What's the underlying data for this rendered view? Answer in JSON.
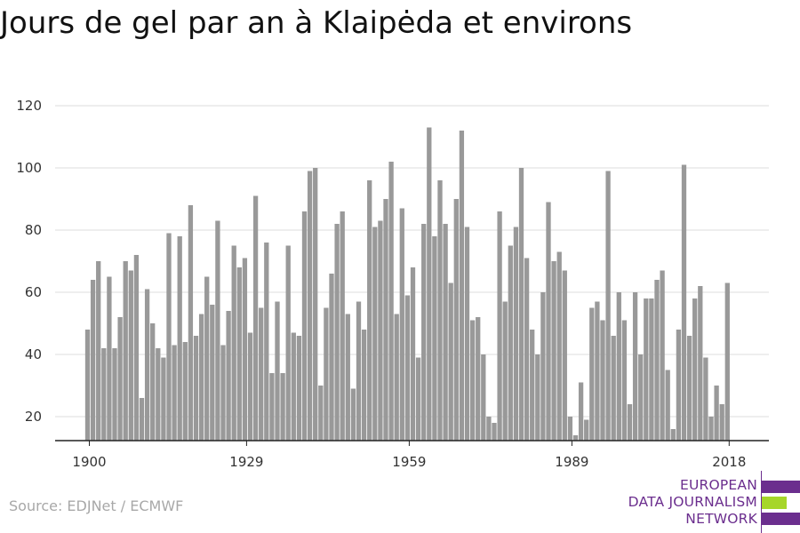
{
  "title": "Jours de gel par an à Klaipėda et environs",
  "source": "Source: EDJNet / ECMWF",
  "logo": {
    "lines": [
      "EUROPEAN",
      "DATA JOURNALISM",
      "NETWORK"
    ]
  },
  "colors": {
    "bar": "#999999",
    "grid": "#dddddd",
    "axis": "#222222",
    "brand_purple": "#6b2e8e",
    "brand_green": "#a6d62a"
  },
  "chart_data": {
    "type": "bar",
    "title": "Jours de gel par an à Klaipėda et environs",
    "xlabel": "",
    "ylabel": "",
    "x_start": 1900,
    "x_tick_labels": [
      "1900",
      "1929",
      "1959",
      "1989",
      "2018"
    ],
    "x_tick_years": [
      1900,
      1929,
      1959,
      1989,
      2018
    ],
    "y_ticks": [
      20,
      40,
      60,
      80,
      100,
      120
    ],
    "ylim": [
      12,
      125
    ],
    "grid": true,
    "values": [
      48,
      64,
      70,
      42,
      65,
      42,
      52,
      70,
      67,
      72,
      26,
      61,
      50,
      42,
      39,
      79,
      43,
      78,
      44,
      88,
      46,
      53,
      65,
      56,
      83,
      43,
      54,
      75,
      68,
      71,
      47,
      91,
      55,
      76,
      34,
      57,
      34,
      75,
      47,
      46,
      86,
      99,
      100,
      30,
      55,
      66,
      82,
      86,
      53,
      29,
      57,
      48,
      96,
      81,
      83,
      90,
      102,
      53,
      87,
      59,
      68,
      39,
      82,
      113,
      78,
      96,
      82,
      63,
      90,
      112,
      81,
      51,
      52,
      40,
      20,
      18,
      86,
      57,
      75,
      81,
      100,
      71,
      48,
      40,
      60,
      89,
      70,
      73,
      67,
      20,
      14,
      31,
      19,
      55,
      57,
      51,
      99,
      46,
      60,
      51,
      24,
      60,
      40,
      58,
      58,
      64,
      67,
      35,
      16,
      48,
      101,
      46,
      58,
      62,
      39,
      20,
      30,
      24,
      63
    ]
  }
}
